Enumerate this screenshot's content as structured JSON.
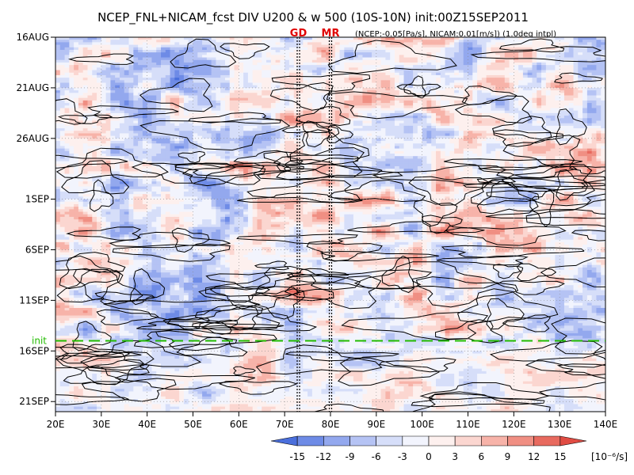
{
  "chart_data": {
    "type": "heatmap",
    "title": "NCEP_FNL+NICAM_fcst DIV U200 & w 500 (10S-10N) init:00Z15SEP2011",
    "subtitle": "(NCEP:-0.05[Pa/s], NICAM:0.01[m/s]) (1.0deg intpl)",
    "markers": [
      {
        "label": "GD",
        "x": 73
      },
      {
        "label": "MR",
        "x": 80
      }
    ],
    "x_ticks": [
      "20E",
      "30E",
      "40E",
      "50E",
      "60E",
      "70E",
      "80E",
      "90E",
      "100E",
      "110E",
      "120E",
      "130E",
      "140E"
    ],
    "x_values": [
      20,
      30,
      40,
      50,
      60,
      70,
      80,
      90,
      100,
      110,
      120,
      130,
      140
    ],
    "xlim": [
      20,
      140
    ],
    "y_ticks": [
      "16AUG",
      "21AUG",
      "26AUG",
      "1SEP",
      "6SEP",
      "11SEP",
      "16SEP",
      "21SEP"
    ],
    "y_values": [
      0,
      5,
      10,
      16,
      21,
      26,
      31,
      36
    ],
    "ylim": [
      0,
      37
    ],
    "init_label": "init",
    "init_day": 30,
    "colorbar": {
      "ticks": [
        "-15",
        "-12",
        "-9",
        "-6",
        "-3",
        "0",
        "3",
        "6",
        "9",
        "12",
        "15"
      ],
      "values": [
        -15,
        -12,
        -9,
        -6,
        -3,
        0,
        3,
        6,
        9,
        12,
        15
      ],
      "unit": "[10⁻⁶/s]",
      "colors": [
        "#4a6fdc",
        "#6e8be6",
        "#93a8ee",
        "#b5c3f4",
        "#d6def9",
        "#f2f4fd",
        "#fdf0ee",
        "#fbd6d0",
        "#f7b3a9",
        "#f08f83",
        "#e86a5f",
        "#e04c43"
      ]
    },
    "grid": true
  }
}
